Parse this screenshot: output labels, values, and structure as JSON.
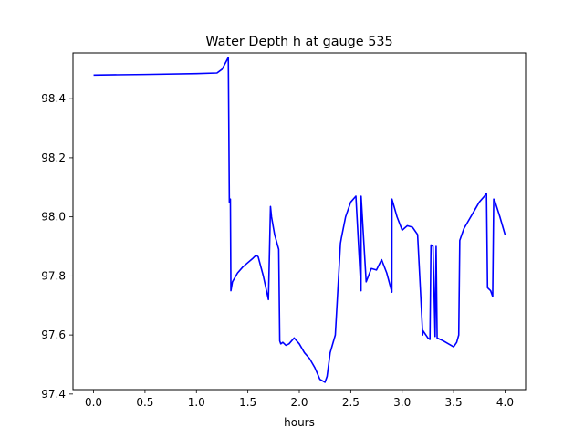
{
  "chart_data": {
    "type": "line",
    "title": "Water Depth h at gauge 535",
    "xlabel": "hours",
    "ylabel": "",
    "xlim": [
      -0.2,
      4.2
    ],
    "ylim": [
      97.415,
      98.555
    ],
    "xticks": [
      0.0,
      0.5,
      1.0,
      1.5,
      2.0,
      2.5,
      3.0,
      3.5,
      4.0
    ],
    "xtick_labels": [
      "0.0",
      "0.5",
      "1.0",
      "1.5",
      "2.0",
      "2.5",
      "3.0",
      "3.5",
      "4.0"
    ],
    "yticks": [
      97.4,
      97.6,
      97.8,
      98.0,
      98.2,
      98.4
    ],
    "ytick_labels": [
      "97.4",
      "97.6",
      "97.8",
      "98.0",
      "98.2",
      "98.4"
    ],
    "grid": false,
    "series": [
      {
        "color": "#0000ff",
        "x": [
          0.0,
          0.5,
          1.0,
          1.2,
          1.25,
          1.28,
          1.31,
          1.32,
          1.33,
          1.335,
          1.34,
          1.345,
          1.35,
          1.4,
          1.45,
          1.5,
          1.55,
          1.58,
          1.6,
          1.65,
          1.7,
          1.72,
          1.73,
          1.76,
          1.8,
          1.81,
          1.82,
          1.84,
          1.87,
          1.9,
          1.95,
          2.0,
          2.05,
          2.1,
          2.15,
          2.2,
          2.25,
          2.27,
          2.3,
          2.35,
          2.4,
          2.41,
          2.45,
          2.5,
          2.55,
          2.6,
          2.601,
          2.65,
          2.7,
          2.75,
          2.8,
          2.85,
          2.9,
          2.901,
          2.95,
          3.0,
          3.05,
          3.1,
          3.15,
          3.2,
          3.201,
          3.25,
          3.27,
          3.28,
          3.3,
          3.32,
          3.33,
          3.34,
          3.4,
          3.45,
          3.5,
          3.53,
          3.55,
          3.56,
          3.6,
          3.65,
          3.7,
          3.75,
          3.8,
          3.82,
          3.83,
          3.86,
          3.87,
          3.88,
          3.89,
          3.9,
          3.95,
          4.0
        ],
        "y": [
          98.48,
          98.482,
          98.485,
          98.487,
          98.5,
          98.52,
          98.54,
          98.05,
          98.06,
          97.75,
          97.76,
          97.77,
          97.78,
          97.81,
          97.83,
          97.845,
          97.86,
          97.87,
          97.865,
          97.8,
          97.72,
          98.035,
          98.0,
          97.94,
          97.89,
          97.58,
          97.57,
          97.575,
          97.565,
          97.57,
          97.59,
          97.57,
          97.54,
          97.52,
          97.49,
          97.45,
          97.44,
          97.46,
          97.54,
          97.6,
          97.91,
          97.93,
          98.0,
          98.05,
          98.07,
          97.75,
          98.07,
          97.78,
          97.825,
          97.82,
          97.855,
          97.81,
          97.745,
          98.06,
          98.0,
          97.955,
          97.97,
          97.965,
          97.94,
          97.6,
          97.615,
          97.59,
          97.585,
          97.905,
          97.9,
          97.595,
          97.9,
          97.59,
          97.58,
          97.57,
          97.56,
          97.575,
          97.6,
          97.92,
          97.96,
          97.99,
          98.02,
          98.05,
          98.07,
          98.08,
          97.76,
          97.75,
          97.74,
          97.73,
          98.06,
          98.055,
          98.0,
          97.94
        ]
      }
    ]
  }
}
